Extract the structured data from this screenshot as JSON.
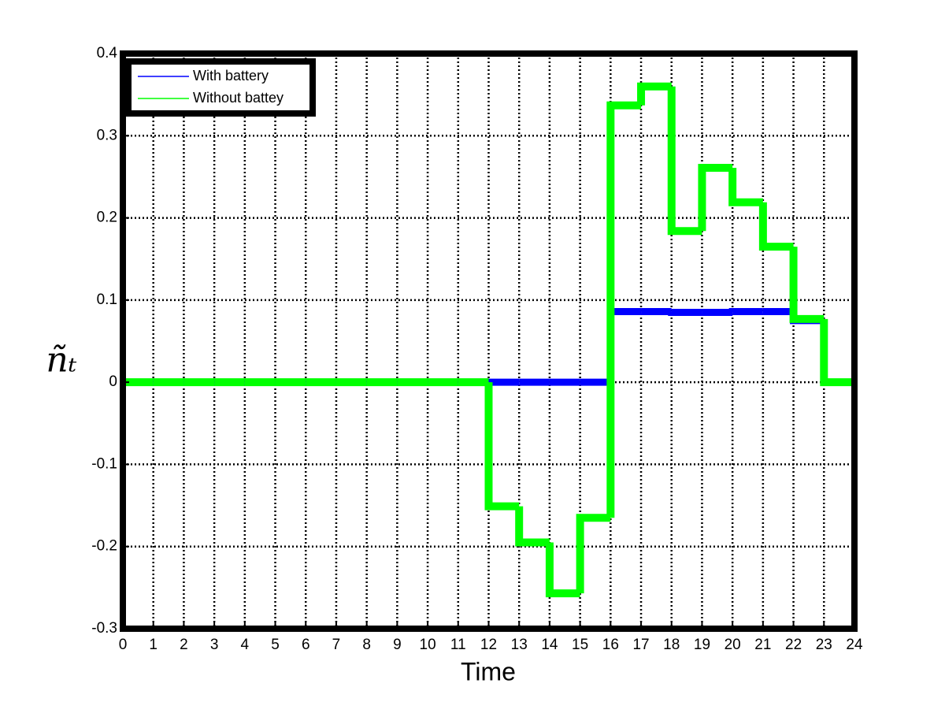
{
  "chart_data": {
    "type": "stairs",
    "xlabel": "Time",
    "ylabel": "ñₜ",
    "x": [
      0,
      1,
      2,
      3,
      4,
      5,
      6,
      7,
      8,
      9,
      10,
      11,
      12,
      13,
      14,
      15,
      16,
      17,
      18,
      19,
      20,
      21,
      22,
      23
    ],
    "series": [
      {
        "name": "With battery",
        "color": "#0000ff",
        "values": [
          0,
          0,
          0,
          0,
          0,
          0,
          0,
          0,
          0,
          0,
          0,
          0,
          0,
          0,
          0,
          0,
          0.086,
          0.086,
          0.085,
          0.085,
          0.086,
          0.086,
          0.075,
          0
        ]
      },
      {
        "name": "Without battey",
        "color": "#00ff00",
        "values": [
          0,
          0,
          0,
          0,
          0,
          0,
          0,
          0,
          0,
          0,
          0,
          0,
          -0.151,
          -0.195,
          -0.257,
          -0.165,
          0.337,
          0.36,
          0.184,
          0.261,
          0.219,
          0.165,
          0.077,
          0
        ]
      }
    ],
    "xlim": [
      0,
      24
    ],
    "xticks": [
      0,
      1,
      2,
      3,
      4,
      5,
      6,
      7,
      8,
      9,
      10,
      11,
      12,
      13,
      14,
      15,
      16,
      17,
      18,
      19,
      20,
      21,
      22,
      23,
      24
    ],
    "ylim": [
      -0.3,
      0.4
    ],
    "yticks": [
      -0.3,
      -0.2,
      -0.1,
      0,
      0.1,
      0.2,
      0.3,
      0.4
    ],
    "grid": true,
    "legend": "upper-left"
  }
}
